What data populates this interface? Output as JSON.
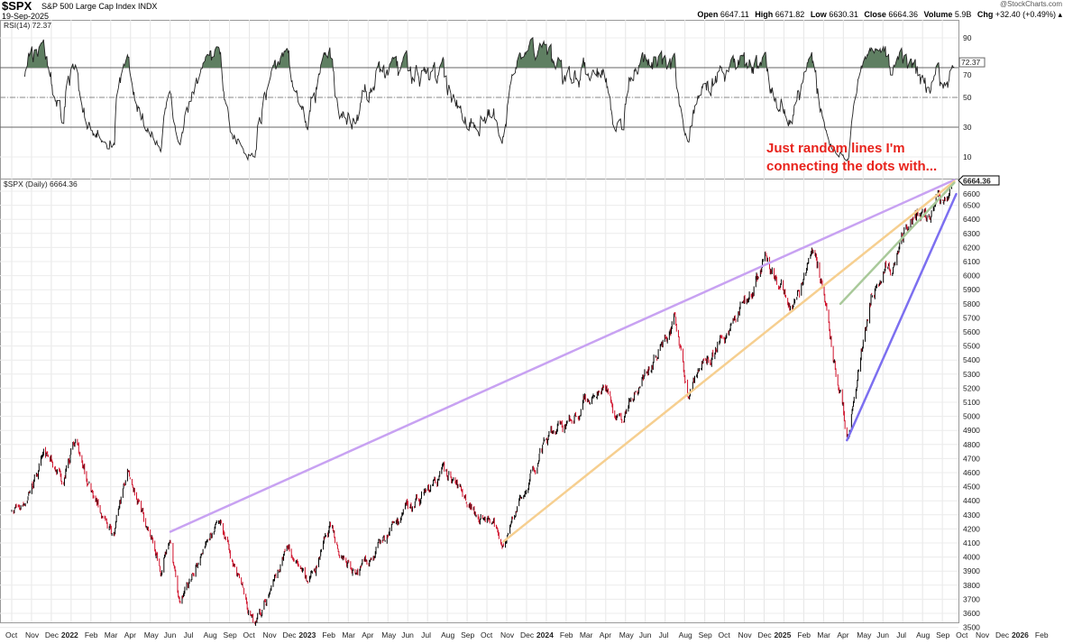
{
  "header": {
    "symbol": "$SPX",
    "name": "S&P 500 Large Cap Index",
    "exchange": "INDX",
    "date": "19-Sep-2025",
    "brand": "@StockCharts.com",
    "open_label": "Open",
    "open": "6647.11",
    "high_label": "High",
    "high": "6671.82",
    "low_label": "Low",
    "low": "6630.31",
    "close_label": "Close",
    "close": "6664.36",
    "volume_label": "Volume",
    "volume": "5.9B",
    "chg_label": "Chg",
    "chg": "+32.40 (+0.49%)"
  },
  "annotation": {
    "line1": "Just random lines I'm",
    "line2": "connecting the dots with..."
  },
  "chart_data": [
    {
      "type": "line",
      "title": "RSI(14) 72.37",
      "legend": "RSI(14) 72.37",
      "last_label": "72.37",
      "yticks": [
        90,
        70,
        50,
        30,
        10
      ],
      "ylim": [
        0,
        100
      ],
      "reference_lines": [
        70,
        50,
        30
      ],
      "overbought_fill_color": "#5f7f62"
    },
    {
      "type": "candlestick",
      "title": "$SPX (Daily) 6664.36",
      "last_label": "6664.36",
      "ylim": [
        3480,
        6680
      ],
      "ytick_step": 100,
      "key_points": [
        [
          "2021-10-01",
          4360
        ],
        [
          "2021-10-13",
          4350
        ],
        [
          "2021-11-20",
          4700
        ],
        [
          "2021-12-20",
          4570
        ],
        [
          "2022-01-03",
          4795
        ],
        [
          "2022-02-23",
          4230
        ],
        [
          "2022-03-08",
          4170
        ],
        [
          "2022-03-29",
          4630
        ],
        [
          "2022-05-20",
          3900
        ],
        [
          "2022-06-01",
          4170
        ],
        [
          "2022-06-16",
          3666
        ],
        [
          "2022-08-16",
          4300
        ],
        [
          "2022-09-30",
          3590
        ],
        [
          "2022-10-12",
          3520
        ],
        [
          "2022-12-01",
          4080
        ],
        [
          "2022-12-28",
          3790
        ],
        [
          "2023-02-02",
          4180
        ],
        [
          "2023-03-13",
          3860
        ],
        [
          "2023-06-15",
          4400
        ],
        [
          "2023-07-31",
          4590
        ],
        [
          "2023-10-27",
          4117
        ],
        [
          "2023-12-28",
          4780
        ],
        [
          "2024-03-28",
          5250
        ],
        [
          "2024-04-19",
          4970
        ],
        [
          "2024-07-16",
          5670
        ],
        [
          "2024-08-05",
          5180
        ],
        [
          "2024-12-06",
          6090
        ],
        [
          "2025-01-13",
          5780
        ],
        [
          "2025-02-19",
          6144
        ],
        [
          "2025-04-08",
          4835
        ],
        [
          "2025-05-15",
          5900
        ],
        [
          "2025-07-10",
          6280
        ],
        [
          "2025-09-19",
          6664.36
        ]
      ],
      "trendlines": [
        {
          "name": "purple",
          "color": "#c8a2f2",
          "from": [
            "2022-06-02",
            4180
          ],
          "to": [
            "2025-09-19",
            6680
          ]
        },
        {
          "name": "orange",
          "color": "#f6cf90",
          "from": [
            "2023-10-27",
            4110
          ],
          "to": [
            "2025-09-19",
            6670
          ]
        },
        {
          "name": "green",
          "color": "#a9c99a",
          "from": [
            "2025-03-28",
            5800
          ],
          "to": [
            "2025-09-19",
            6660
          ]
        },
        {
          "name": "blue",
          "color": "#7c6ff0",
          "from": [
            "2025-04-07",
            4830
          ],
          "to": [
            "2025-09-22",
            6580
          ]
        }
      ],
      "up_color": "#000000",
      "down_color": "#d0102a"
    }
  ],
  "xaxis": {
    "labels": [
      [
        "Oct",
        0
      ],
      [
        "Nov",
        0
      ],
      [
        "Dec",
        0
      ],
      [
        "2022",
        1
      ],
      [
        "Feb",
        0
      ],
      [
        "Mar",
        0
      ],
      [
        "Apr",
        0
      ],
      [
        "May",
        0
      ],
      [
        "Jun",
        0
      ],
      [
        "Jul",
        0
      ],
      [
        "Aug",
        0
      ],
      [
        "Sep",
        0
      ],
      [
        "Oct",
        0
      ],
      [
        "Nov",
        0
      ],
      [
        "Dec",
        0
      ],
      [
        "2023",
        1
      ],
      [
        "Feb",
        0
      ],
      [
        "Mar",
        0
      ],
      [
        "Apr",
        0
      ],
      [
        "May",
        0
      ],
      [
        "Jun",
        0
      ],
      [
        "Jul",
        0
      ],
      [
        "Aug",
        0
      ],
      [
        "Sep",
        0
      ],
      [
        "Oct",
        0
      ],
      [
        "Nov",
        0
      ],
      [
        "Dec",
        0
      ],
      [
        "2024",
        1
      ],
      [
        "Feb",
        0
      ],
      [
        "Mar",
        0
      ],
      [
        "Apr",
        0
      ],
      [
        "May",
        0
      ],
      [
        "Jun",
        0
      ],
      [
        "Jul",
        0
      ],
      [
        "Aug",
        0
      ],
      [
        "Sep",
        0
      ],
      [
        "Oct",
        0
      ],
      [
        "Nov",
        0
      ],
      [
        "Dec",
        0
      ],
      [
        "2025",
        1
      ],
      [
        "Feb",
        0
      ],
      [
        "Mar",
        0
      ],
      [
        "Apr",
        0
      ],
      [
        "May",
        0
      ],
      [
        "Jun",
        0
      ],
      [
        "Jul",
        0
      ],
      [
        "Aug",
        0
      ],
      [
        "Sep",
        0
      ],
      [
        "Oct",
        0
      ],
      [
        "Nov",
        0
      ],
      [
        "Dec",
        0
      ],
      [
        "2026",
        1
      ],
      [
        "Feb",
        0
      ]
    ]
  }
}
